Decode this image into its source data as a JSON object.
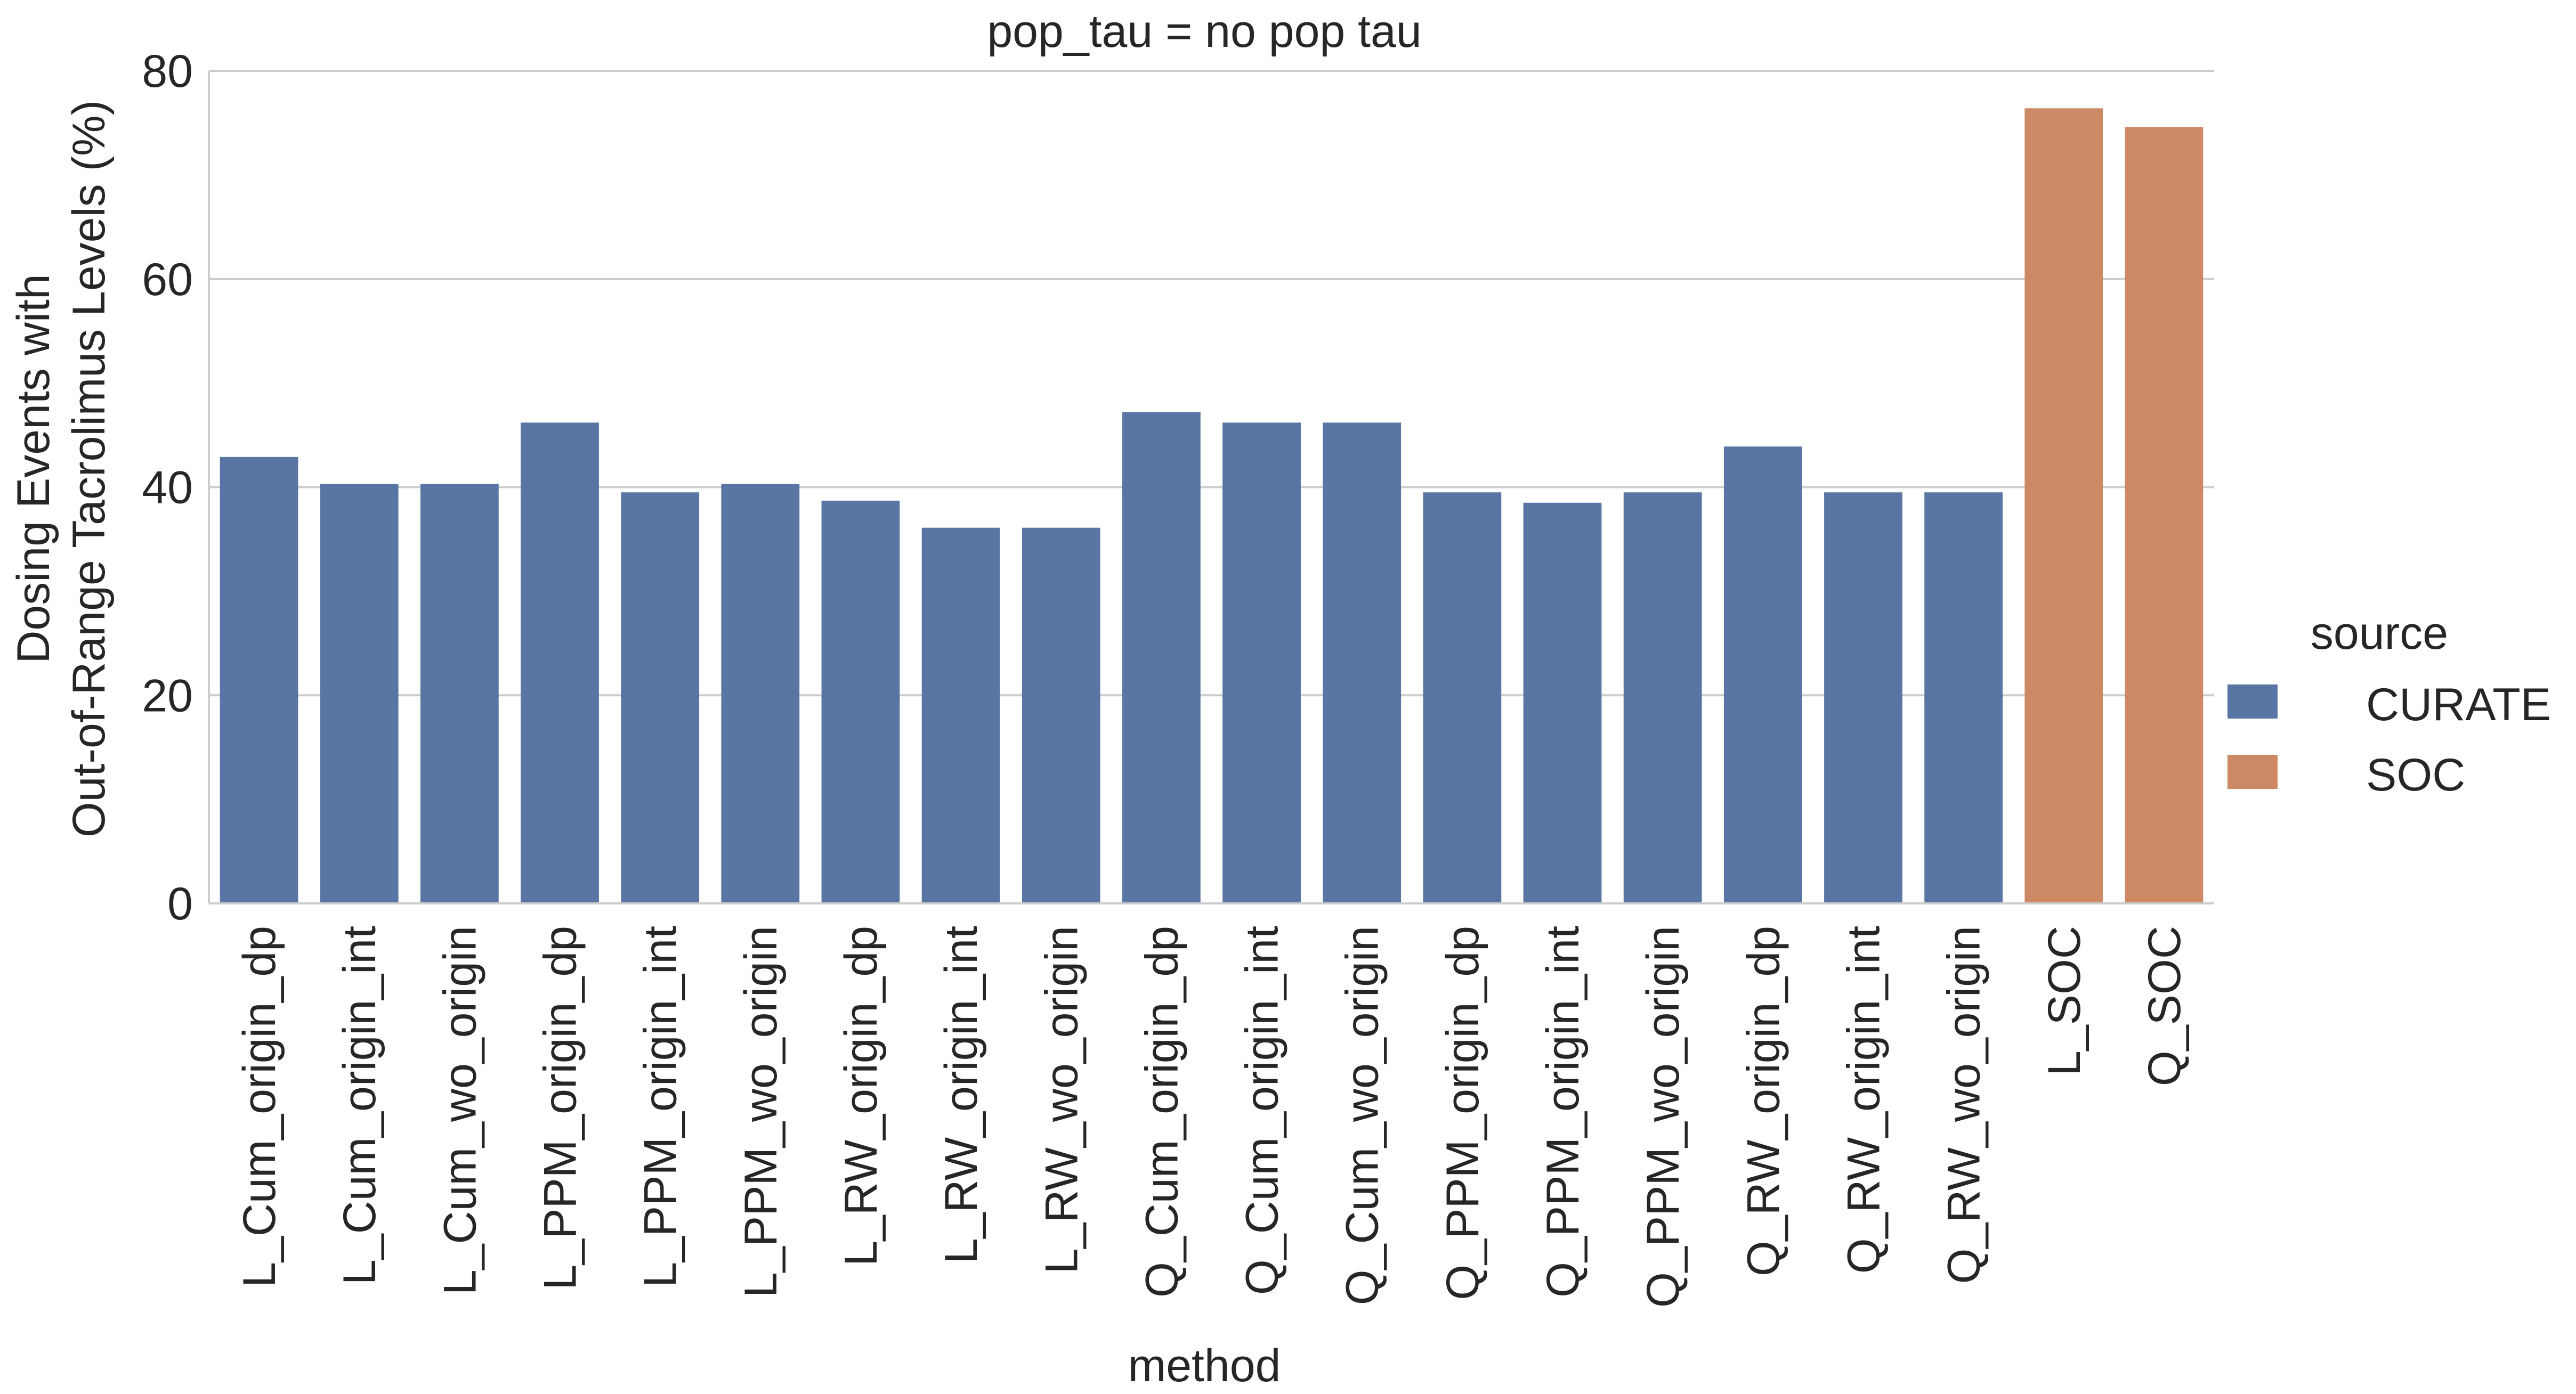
{
  "chart_data": {
    "type": "bar",
    "title": "pop_tau = no pop tau",
    "xlabel": "method",
    "ylabel_lines": [
      "Dosing Events with",
      "Out-of-Range Tacrolimus Levels (%)"
    ],
    "ylim": [
      0,
      80
    ],
    "yticks": [
      0,
      20,
      40,
      60,
      80
    ],
    "grid": true,
    "legend_position": "right",
    "legend_title": "source",
    "series": [
      {
        "name": "CURATE",
        "color": "#5875a4"
      },
      {
        "name": "SOC",
        "color": "#cc8963"
      }
    ],
    "categories": [
      "L_Cum_origin_dp",
      "L_Cum_origin_int",
      "L_Cum_wo_origin",
      "L_PPM_origin_dp",
      "L_PPM_origin_int",
      "L_PPM_wo_origin",
      "L_RW_origin_dp",
      "L_RW_origin_int",
      "L_RW_wo_origin",
      "Q_Cum_origin_dp",
      "Q_Cum_origin_int",
      "Q_Cum_wo_origin",
      "Q_PPM_origin_dp",
      "Q_PPM_origin_int",
      "Q_PPM_wo_origin",
      "Q_RW_origin_dp",
      "Q_RW_origin_int",
      "Q_RW_wo_origin",
      "L_SOC",
      "Q_SOC"
    ],
    "values": [
      42.9,
      40.3,
      40.3,
      46.2,
      39.5,
      40.3,
      38.7,
      36.1,
      36.1,
      47.2,
      46.2,
      46.2,
      39.5,
      38.5,
      39.5,
      43.9,
      39.5,
      39.5,
      76.4,
      74.6
    ],
    "bar_source": [
      "CURATE",
      "CURATE",
      "CURATE",
      "CURATE",
      "CURATE",
      "CURATE",
      "CURATE",
      "CURATE",
      "CURATE",
      "CURATE",
      "CURATE",
      "CURATE",
      "CURATE",
      "CURATE",
      "CURATE",
      "CURATE",
      "CURATE",
      "CURATE",
      "SOC",
      "SOC"
    ]
  }
}
